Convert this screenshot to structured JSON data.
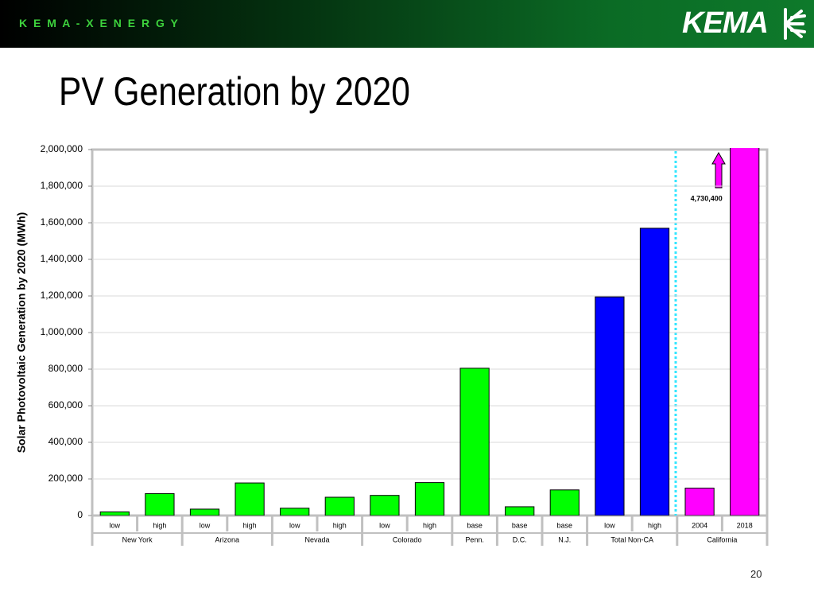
{
  "header": {
    "brand": "K E M A - X E N E R G Y",
    "logo": "KEMA"
  },
  "page_number": "20",
  "chart_data": {
    "type": "bar",
    "title": "PV Generation by 2020",
    "y_label": "Solar Photovoltaic Generation by 2020 (MWh)",
    "ylim": [
      0,
      2000000
    ],
    "yticks": [
      0,
      {
        "value": 200000,
        "label": "200,000"
      },
      {
        "value": 400000,
        "label": "400,000"
      },
      {
        "value": 600000,
        "label": "600,000"
      },
      {
        "value": 800000,
        "label": "800,000"
      },
      {
        "value": 1000000,
        "label": "1,000,000"
      },
      {
        "value": 1200000,
        "label": "1,200,000"
      },
      {
        "value": 1400000,
        "label": "1,400,000"
      },
      {
        "value": 1600000,
        "label": "1,600,000"
      },
      {
        "value": 1800000,
        "label": "1,800,000"
      },
      {
        "value": 2000000,
        "label": "2,000,000"
      }
    ],
    "grid": true,
    "groups": [
      {
        "name": "New York",
        "color": "#00ff00",
        "categories": [
          "low",
          "high"
        ],
        "values": [
          20000,
          120000
        ]
      },
      {
        "name": "Arizona",
        "color": "#00ff00",
        "categories": [
          "low",
          "high"
        ],
        "values": [
          35000,
          178000
        ]
      },
      {
        "name": "Nevada",
        "color": "#00ff00",
        "categories": [
          "low",
          "high"
        ],
        "values": [
          40000,
          100000
        ]
      },
      {
        "name": "Colorado",
        "color": "#00ff00",
        "categories": [
          "low",
          "high"
        ],
        "values": [
          110000,
          180000
        ]
      },
      {
        "name": "Penn.",
        "color": "#00ff00",
        "categories": [
          "base"
        ],
        "values": [
          805000
        ]
      },
      {
        "name": "D.C.",
        "color": "#00ff00",
        "categories": [
          "base"
        ],
        "values": [
          48000
        ]
      },
      {
        "name": "N.J.",
        "color": "#00ff00",
        "categories": [
          "base"
        ],
        "values": [
          140000
        ]
      },
      {
        "name": "Total Non-CA",
        "color": "#0000ff",
        "categories": [
          "low",
          "high"
        ],
        "values": [
          1195000,
          1570000
        ]
      },
      {
        "name": "California",
        "color": "#ff00ff",
        "categories": [
          "2004",
          "2018"
        ],
        "values": [
          150000,
          4730400
        ],
        "value_labels": [
          null,
          "4,730,400"
        ]
      }
    ]
  }
}
